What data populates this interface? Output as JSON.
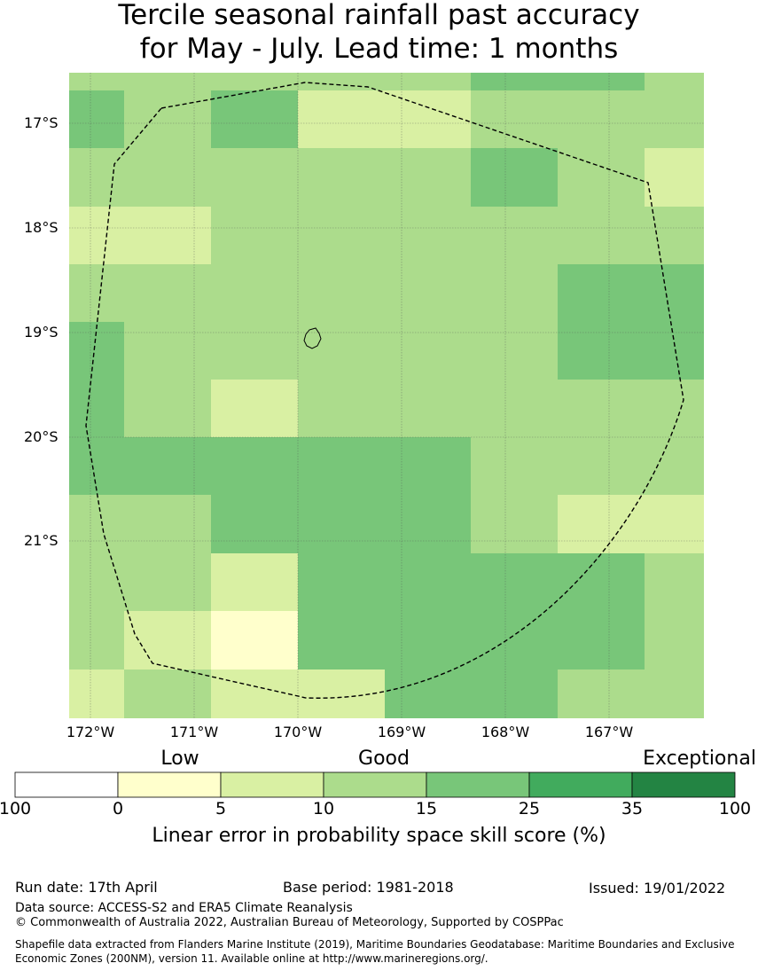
{
  "title": {
    "line1": "Tercile seasonal rainfall past accuracy",
    "line2": "for May - July. Lead time: 1 months"
  },
  "map": {
    "lat_labels": [
      "17°S",
      "18°S",
      "19°S",
      "20°S",
      "21°S"
    ],
    "lon_labels": [
      "172°W",
      "171°W",
      "170°W",
      "169°W",
      "168°W",
      "167°W"
    ],
    "cell_colors": [
      [
        "#acdc8c",
        "#acdc8c",
        "#acdc8c",
        "#acdc8c",
        "#acdc8c",
        "#78c679",
        "#78c679",
        "#acdc8c"
      ],
      [
        "#78c679",
        "#acdc8c",
        "#78c679",
        "#d9f0a3",
        "#d9f0a3",
        "#acdc8c",
        "#acdc8c",
        "#acdc8c"
      ],
      [
        "#acdc8c",
        "#acdc8c",
        "#acdc8c",
        "#acdc8c",
        "#acdc8c",
        "#78c679",
        "#acdc8c",
        "#d9f0a3"
      ],
      [
        "#d9f0a3",
        "#d9f0a3",
        "#acdc8c",
        "#acdc8c",
        "#acdc8c",
        "#acdc8c",
        "#acdc8c",
        "#acdc8c"
      ],
      [
        "#acdc8c",
        "#acdc8c",
        "#acdc8c",
        "#acdc8c",
        "#acdc8c",
        "#acdc8c",
        "#78c679",
        "#78c679"
      ],
      [
        "#78c679",
        "#acdc8c",
        "#acdc8c",
        "#acdc8c",
        "#acdc8c",
        "#acdc8c",
        "#78c679",
        "#78c679"
      ],
      [
        "#78c679",
        "#acdc8c",
        "#d9f0a3",
        "#acdc8c",
        "#acdc8c",
        "#acdc8c",
        "#acdc8c",
        "#acdc8c"
      ],
      [
        "#78c679",
        "#78c679",
        "#78c679",
        "#78c679",
        "#78c679",
        "#acdc8c",
        "#acdc8c",
        "#acdc8c"
      ],
      [
        "#acdc8c",
        "#acdc8c",
        "#78c679",
        "#78c679",
        "#78c679",
        "#acdc8c",
        "#d9f0a3",
        "#d9f0a3"
      ],
      [
        "#acdc8c",
        "#acdc8c",
        "#d9f0a3",
        "#78c679",
        "#78c679",
        "#78c679",
        "#78c679",
        "#acdc8c"
      ],
      [
        "#acdc8c",
        "#d9f0a3",
        "#ffffcc",
        "#78c679",
        "#78c679",
        "#78c679",
        "#78c679",
        "#acdc8c"
      ],
      [
        "#d9f0a3",
        "#acdc8c",
        "#d9f0a3",
        "#d9f0a3",
        "#78c679",
        "#78c679",
        "#acdc8c",
        "#acdc8c"
      ]
    ]
  },
  "legend": {
    "categories": [
      "Low",
      "Good",
      "Exceptional"
    ],
    "tick_labels": [
      "100",
      "0",
      "5",
      "10",
      "15",
      "25",
      "35",
      "100"
    ],
    "colors": [
      "#ffffff",
      "#ffffcc",
      "#d9f0a3",
      "#acdc8c",
      "#78c679",
      "#41ab5d",
      "#238443"
    ],
    "label": "Linear error in probability space skill score (%)"
  },
  "footer": {
    "run_date": "Run date: 17th April",
    "base_period": "Base period: 1981-2018",
    "issued": "Issued: 19/01/2022",
    "data_source": "Data source: ACCESS-S2 and ERA5 Climate Reanalysis",
    "copyright": "© Commonwealth of Australia 2022, Australian Bureau of Meteorology, Supported by COSPPac",
    "shapefile": "Shapefile data extracted from Flanders Marine Institute (2019), Maritime Boundaries Geodatabase: Maritime Boundaries and Exclusive Economic Zones (200NM), version 11. Available online at http://www.marineregions.org/."
  }
}
